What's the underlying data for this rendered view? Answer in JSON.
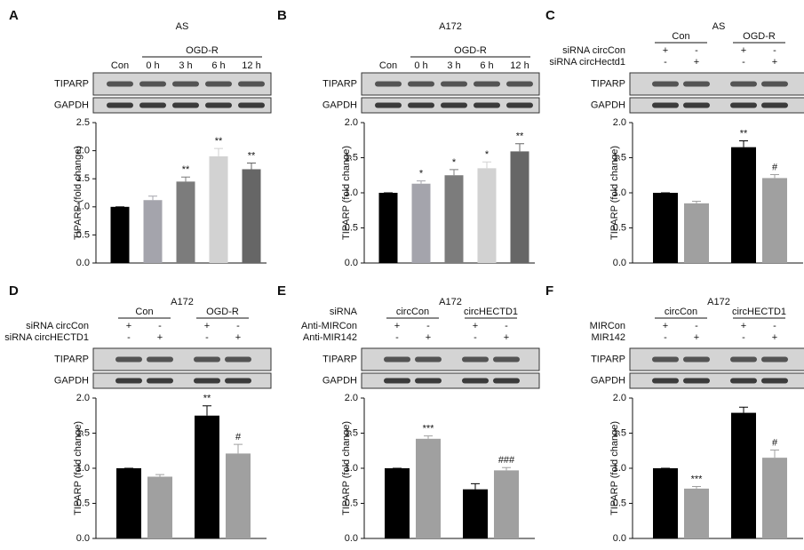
{
  "chart_data": [
    {
      "panel": "A",
      "type": "bar",
      "title": "AS",
      "group": "OGD-R",
      "categories": [
        "Con",
        "0 h",
        "3 h",
        "6 h",
        "12 h"
      ],
      "blots": [
        "TIPARP",
        "GAPDH"
      ],
      "ylabel": "TIPARP (fold change)",
      "ylim": [
        0,
        2.5
      ],
      "yticks": [
        {
          "value": 0,
          "label": "0.0"
        },
        {
          "value": 0.5,
          "label": "0.5"
        },
        {
          "value": 1,
          "label": "1.0"
        },
        {
          "value": 1.5,
          "label": "1.5"
        },
        {
          "value": 2,
          "label": "2.0"
        },
        {
          "value": 2.5,
          "label": "2.5"
        }
      ],
      "values": [
        1.0,
        1.12,
        1.45,
        1.9,
        1.67
      ],
      "errors": [
        0,
        0.07,
        0.08,
        0.14,
        0.11
      ],
      "annotations": [
        null,
        null,
        "**",
        "**",
        "**"
      ],
      "colors": [
        "#000000",
        "#a4a4ac",
        "#7c7c7c",
        "#d2d2d2",
        "#666666"
      ]
    },
    {
      "panel": "B",
      "type": "bar",
      "title": "A172",
      "group": "OGD-R",
      "categories": [
        "Con",
        "0 h",
        "3 h",
        "6 h",
        "12 h"
      ],
      "blots": [
        "TIPARP",
        "GAPDH"
      ],
      "ylabel": "TIPARP (fold change)",
      "ylim": [
        0,
        2
      ],
      "yticks": [
        {
          "value": 0,
          "label": "0.0"
        },
        {
          "value": 0.5,
          "label": "0.5"
        },
        {
          "value": 1,
          "label": "1.0"
        },
        {
          "value": 1.5,
          "label": "1.5"
        },
        {
          "value": 2,
          "label": "2.0"
        }
      ],
      "values": [
        1.0,
        1.13,
        1.25,
        1.35,
        1.59
      ],
      "errors": [
        0,
        0.04,
        0.08,
        0.09,
        0.11
      ],
      "annotations": [
        null,
        "*",
        "*",
        "*",
        "**"
      ],
      "colors": [
        "#000000",
        "#a4a4ac",
        "#7c7c7c",
        "#d2d2d2",
        "#666666"
      ]
    },
    {
      "panel": "C",
      "type": "bar",
      "title": "AS",
      "groups": [
        "Con",
        "OGD-R"
      ],
      "rows": [
        {
          "label": "siRNA circCon",
          "signs": [
            "+",
            "-",
            "+",
            "-"
          ]
        },
        {
          "label": "siRNA circHectd1",
          "signs": [
            "-",
            "+",
            "-",
            "+"
          ]
        }
      ],
      "blots": [
        "TIPARP",
        "GAPDH"
      ],
      "ylabel": "TIPARP (fold change)",
      "ylim": [
        0,
        2
      ],
      "yticks": [
        {
          "value": 0,
          "label": "0.0"
        },
        {
          "value": 0.5,
          "label": "0.5"
        },
        {
          "value": 1,
          "label": "1.0"
        },
        {
          "value": 1.5,
          "label": "1.5"
        },
        {
          "value": 2,
          "label": "2.0"
        }
      ],
      "values": [
        1.0,
        0.85,
        1.65,
        1.21
      ],
      "errors": [
        0,
        0.03,
        0.09,
        0.05
      ],
      "annotations": [
        null,
        null,
        "**",
        "#"
      ],
      "colors": [
        "#000000",
        "#a0a0a0",
        "#000000",
        "#a0a0a0"
      ]
    },
    {
      "panel": "D",
      "type": "bar",
      "title": "A172",
      "groups": [
        "Con",
        "OGD-R"
      ],
      "rows": [
        {
          "label": "siRNA circCon",
          "signs": [
            "+",
            "-",
            "+",
            "-"
          ]
        },
        {
          "label": "siRNA circHECTD1",
          "signs": [
            "-",
            "+",
            "-",
            "+"
          ]
        }
      ],
      "blots": [
        "TIPARP",
        "GAPDH"
      ],
      "ylabel": "TIPARP (fold change)",
      "ylim": [
        0,
        2
      ],
      "yticks": [
        {
          "value": 0,
          "label": "0.0"
        },
        {
          "value": 0.5,
          "label": "0.5"
        },
        {
          "value": 1,
          "label": "1.0"
        },
        {
          "value": 1.5,
          "label": "1.5"
        },
        {
          "value": 2,
          "label": "2.0"
        }
      ],
      "values": [
        1.0,
        0.88,
        1.75,
        1.21
      ],
      "errors": [
        0,
        0.03,
        0.14,
        0.13
      ],
      "annotations": [
        null,
        null,
        "**",
        "#"
      ],
      "colors": [
        "#000000",
        "#a0a0a0",
        "#000000",
        "#a0a0a0"
      ]
    },
    {
      "panel": "E",
      "type": "bar",
      "title": "A172",
      "groups_label": "siRNA",
      "groups": [
        "circCon",
        "circHECTD1"
      ],
      "rows": [
        {
          "label": "Anti-MIRCon",
          "signs": [
            "+",
            "-",
            "+",
            "-"
          ]
        },
        {
          "label": "Anti-MIR142",
          "signs": [
            "-",
            "+",
            "-",
            "+"
          ]
        }
      ],
      "blots": [
        "TIPARP",
        "GAPDH"
      ],
      "ylabel": "TIPARP (fold change)",
      "ylim": [
        0,
        2
      ],
      "yticks": [
        {
          "value": 0,
          "label": "0.0"
        },
        {
          "value": 0.5,
          "label": "0.5"
        },
        {
          "value": 1,
          "label": "1.0"
        },
        {
          "value": 1.5,
          "label": "1.5"
        },
        {
          "value": 2,
          "label": "2.0"
        }
      ],
      "values": [
        1.0,
        1.42,
        0.7,
        0.97
      ],
      "errors": [
        0,
        0.04,
        0.08,
        0.04
      ],
      "annotations": [
        null,
        "***",
        null,
        "###"
      ],
      "colors": [
        "#000000",
        "#a0a0a0",
        "#000000",
        "#a0a0a0"
      ]
    },
    {
      "panel": "F",
      "type": "bar",
      "title": "A172",
      "groups": [
        "circCon",
        "circHECTD1"
      ],
      "rows": [
        {
          "label": "MIRCon",
          "signs": [
            "+",
            "-",
            "+",
            "-"
          ]
        },
        {
          "label": "MIR142",
          "signs": [
            "-",
            "+",
            "-",
            "+"
          ]
        }
      ],
      "blots": [
        "TIPARP",
        "GAPDH"
      ],
      "ylabel": "TIPARP (fold change)",
      "ylim": [
        0,
        2
      ],
      "yticks": [
        {
          "value": 0,
          "label": "0.0"
        },
        {
          "value": 0.5,
          "label": "0.5"
        },
        {
          "value": 1,
          "label": "1.0"
        },
        {
          "value": 1.5,
          "label": "1.5"
        },
        {
          "value": 2,
          "label": "2.0"
        }
      ],
      "values": [
        1.0,
        0.71,
        1.79,
        1.15
      ],
      "errors": [
        0,
        0.03,
        0.08,
        0.11
      ],
      "annotations": [
        null,
        "***",
        null,
        "#"
      ],
      "colors": [
        "#000000",
        "#a0a0a0",
        "#000000",
        "#a0a0a0"
      ]
    }
  ]
}
